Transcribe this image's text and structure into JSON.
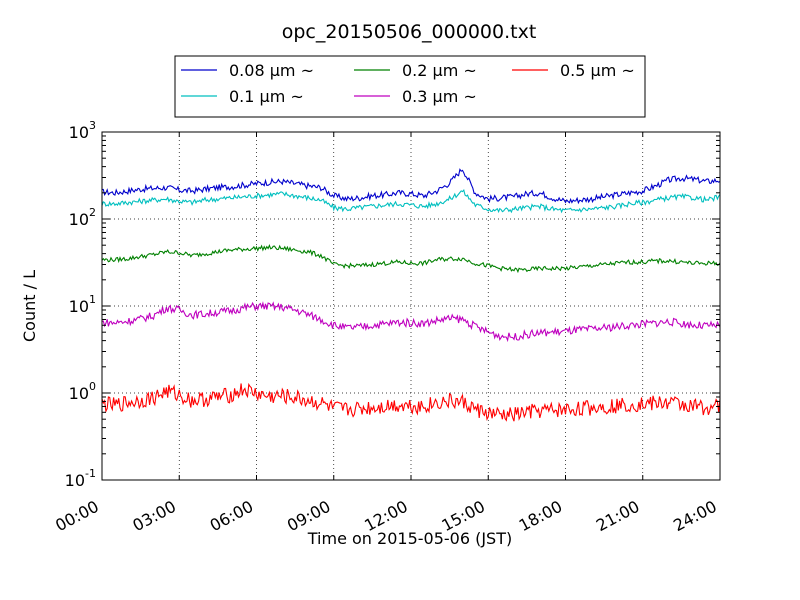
{
  "chart_data": {
    "type": "line",
    "title": "opc_20150506_000000.txt",
    "xlabel": "Time on 2015-05-06 (JST)",
    "ylabel": "Count / L",
    "x_unit": "hours",
    "xlim": [
      0,
      24
    ],
    "ylim": [
      0.1,
      1000
    ],
    "yscale": "log",
    "grid": true,
    "legend_position": "top-center",
    "x_ticks": [
      {
        "value": 0,
        "label": "00:00"
      },
      {
        "value": 3,
        "label": "03:00"
      },
      {
        "value": 6,
        "label": "06:00"
      },
      {
        "value": 9,
        "label": "09:00"
      },
      {
        "value": 12,
        "label": "12:00"
      },
      {
        "value": 15,
        "label": "15:00"
      },
      {
        "value": 18,
        "label": "18:00"
      },
      {
        "value": 21,
        "label": "21:00"
      },
      {
        "value": 24,
        "label": "24:00"
      }
    ],
    "y_ticks": [
      {
        "value": 0.1,
        "base": "10",
        "exp": "-1"
      },
      {
        "value": 1,
        "base": "10",
        "exp": "0"
      },
      {
        "value": 10,
        "base": "10",
        "exp": "1"
      },
      {
        "value": 100,
        "base": "10",
        "exp": "2"
      },
      {
        "value": 1000,
        "base": "10",
        "exp": "3"
      }
    ],
    "x": [
      0,
      0.5,
      1,
      1.5,
      2,
      2.5,
      3,
      3.5,
      4,
      4.5,
      5,
      5.5,
      6,
      6.5,
      7,
      7.5,
      8,
      8.5,
      9,
      9.5,
      10,
      10.5,
      11,
      11.5,
      12,
      12.5,
      13,
      13.5,
      14,
      14.5,
      15,
      15.5,
      16,
      16.5,
      17,
      17.5,
      18,
      18.5,
      19,
      19.5,
      20,
      20.5,
      21,
      21.5,
      22,
      22.5,
      23,
      23.5,
      24
    ],
    "series": [
      {
        "name": "0.08 μm ~",
        "color": "#0000cc",
        "values": [
          205,
          200,
          210,
          220,
          225,
          230,
          215,
          210,
          220,
          230,
          235,
          245,
          255,
          265,
          270,
          255,
          240,
          230,
          185,
          170,
          175,
          185,
          190,
          200,
          195,
          185,
          210,
          260,
          380,
          200,
          170,
          175,
          180,
          195,
          200,
          175,
          160,
          165,
          170,
          180,
          190,
          200,
          210,
          240,
          280,
          295,
          285,
          270,
          280
        ]
      },
      {
        "name": "0.1 μm ~",
        "color": "#00bfbf",
        "values": [
          150,
          150,
          155,
          160,
          165,
          170,
          160,
          155,
          165,
          170,
          175,
          180,
          185,
          190,
          195,
          185,
          175,
          165,
          135,
          130,
          135,
          140,
          145,
          150,
          145,
          140,
          150,
          170,
          210,
          145,
          130,
          125,
          130,
          135,
          140,
          130,
          125,
          128,
          130,
          135,
          140,
          150,
          155,
          165,
          175,
          180,
          175,
          165,
          180
        ]
      },
      {
        "name": "0.2 μm ~",
        "color": "#008000",
        "values": [
          34,
          34,
          35,
          37,
          39,
          42,
          41,
          38,
          40,
          42,
          44,
          45,
          46,
          47,
          46,
          44,
          42,
          38,
          30,
          29,
          29,
          30,
          31,
          32,
          31,
          31,
          34,
          35,
          35,
          31,
          29,
          27,
          26,
          26,
          27,
          27,
          27,
          28,
          29,
          30,
          31,
          32,
          32,
          33,
          33,
          32,
          31,
          31,
          31
        ]
      },
      {
        "name": "0.3 μm ~",
        "color": "#bf00bf",
        "values": [
          6.5,
          6.4,
          6.7,
          7.1,
          7.8,
          9.5,
          9.0,
          7.9,
          8.1,
          8.5,
          8.8,
          9.5,
          10,
          9.9,
          9.7,
          9.0,
          8.0,
          7.0,
          6.0,
          5.6,
          5.7,
          6.0,
          6.2,
          6.5,
          6.4,
          6.3,
          6.8,
          7.2,
          7.0,
          5.8,
          5.0,
          4.5,
          4.4,
          4.7,
          4.9,
          5.0,
          5.1,
          5.3,
          5.4,
          5.6,
          5.8,
          6.0,
          6.2,
          6.4,
          6.6,
          6.3,
          6.0,
          5.9,
          6.0
        ]
      },
      {
        "name": "0.5 μm ~",
        "color": "#ff0000",
        "values": [
          0.75,
          0.72,
          0.78,
          0.82,
          0.88,
          1.05,
          0.95,
          0.82,
          0.85,
          0.9,
          0.95,
          1.1,
          0.98,
          0.9,
          0.92,
          0.88,
          0.82,
          0.76,
          0.66,
          0.64,
          0.66,
          0.68,
          0.71,
          0.73,
          0.72,
          0.7,
          0.78,
          0.8,
          0.78,
          0.65,
          0.58,
          0.55,
          0.56,
          0.6,
          0.62,
          0.63,
          0.64,
          0.66,
          0.68,
          0.7,
          0.72,
          0.74,
          0.75,
          0.76,
          0.78,
          0.74,
          0.7,
          0.68,
          0.72
        ]
      }
    ]
  }
}
